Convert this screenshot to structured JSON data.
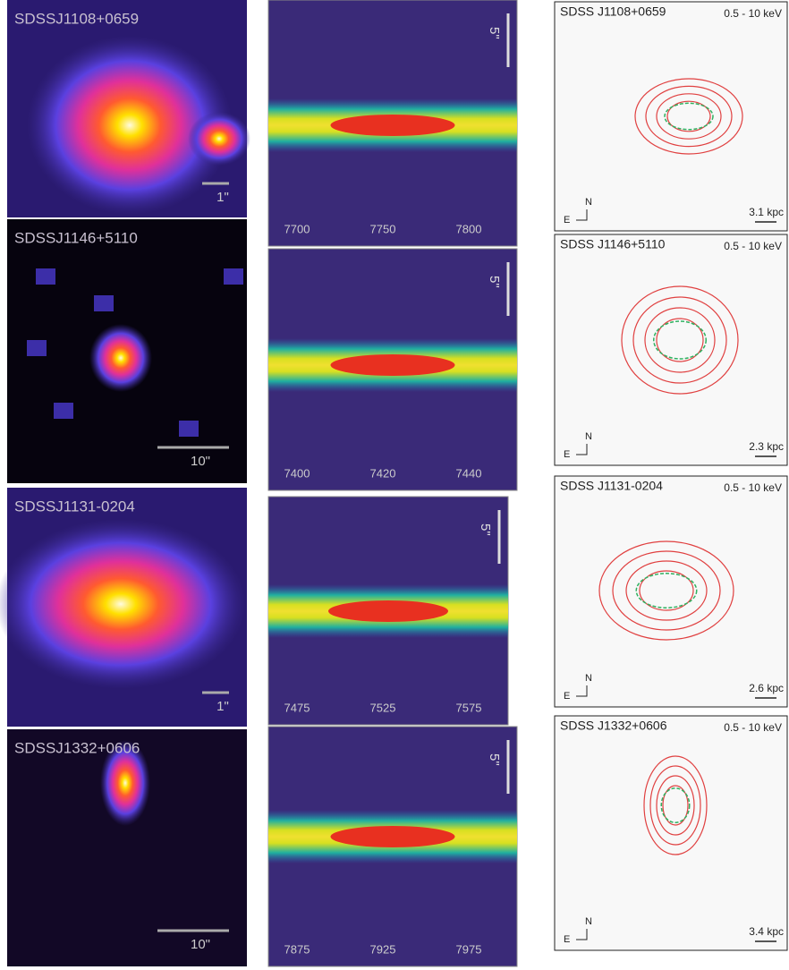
{
  "rows": [
    {
      "image": {
        "label": "SDSSJ1108+0659",
        "scale": "1\""
      },
      "spectrum": {
        "ticks": [
          "7700",
          "7750",
          "7800"
        ],
        "scale": "5\""
      },
      "xray": {
        "label": "SDSS J1108+0659",
        "band": "0.5 - 10 keV",
        "north": "N",
        "east": "E",
        "scale": "3.1 kpc"
      }
    },
    {
      "image": {
        "label": "SDSSJ1146+5110",
        "scale": "10\""
      },
      "spectrum": {
        "ticks": [
          "7400",
          "7420",
          "7440"
        ],
        "scale": "5\""
      },
      "xray": {
        "label": "SDSS J1146+5110",
        "band": "0.5 - 10 keV",
        "north": "N",
        "east": "E",
        "scale": "2.3 kpc"
      }
    },
    {
      "image": {
        "label": "SDSSJ1131-0204",
        "scale": "1\""
      },
      "spectrum": {
        "ticks": [
          "7475",
          "7525",
          "7575"
        ],
        "scale": "5\""
      },
      "xray": {
        "label": "SDSS J1131-0204",
        "band": "0.5 - 10 keV",
        "north": "N",
        "east": "E",
        "scale": "2.6 kpc"
      }
    },
    {
      "image": {
        "label": "SDSSJ1332+0606",
        "scale": "10\""
      },
      "spectrum": {
        "ticks": [
          "7875",
          "7925",
          "7975"
        ],
        "scale": "5\""
      },
      "xray": {
        "label": "SDSS J1332+0606",
        "band": "0.5 - 10 keV",
        "north": "N",
        "east": "E",
        "scale": "3.4 kpc"
      }
    }
  ]
}
